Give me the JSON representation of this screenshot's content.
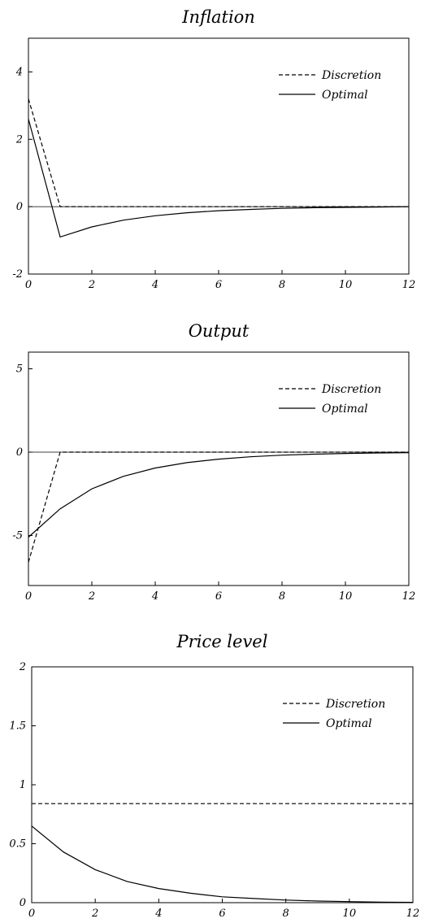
{
  "chart_data": [
    {
      "type": "line",
      "title": "Inflation",
      "xlabel": "",
      "ylabel": "",
      "xlim": [
        0,
        12
      ],
      "ylim": [
        -2,
        5
      ],
      "xticks": [
        0,
        2,
        4,
        6,
        8,
        10,
        12
      ],
      "yticks": [
        -2,
        0,
        2,
        4
      ],
      "zero_line": true,
      "grid": false,
      "legend_position": "top-right",
      "series": [
        {
          "name": "Discretion",
          "style": "dashed",
          "x": [
            0,
            1,
            2,
            3,
            4,
            5,
            6,
            7,
            8,
            9,
            10,
            11,
            12
          ],
          "y": [
            3.2,
            0,
            0,
            0,
            0,
            0,
            0,
            0,
            0,
            0,
            0,
            0,
            0
          ]
        },
        {
          "name": "Optimal",
          "style": "solid",
          "x": [
            0,
            1,
            2,
            3,
            4,
            5,
            6,
            7,
            8,
            9,
            10,
            11,
            12
          ],
          "y": [
            2.6,
            -0.9,
            -0.6,
            -0.4,
            -0.27,
            -0.18,
            -0.12,
            -0.08,
            -0.05,
            -0.03,
            -0.02,
            -0.01,
            0
          ]
        }
      ]
    },
    {
      "type": "line",
      "title": "Output",
      "xlabel": "",
      "ylabel": "",
      "xlim": [
        0,
        12
      ],
      "ylim": [
        -8,
        6
      ],
      "xticks": [
        0,
        2,
        4,
        6,
        8,
        10,
        12
      ],
      "yticks": [
        -5,
        0,
        5
      ],
      "zero_line": true,
      "grid": false,
      "legend_position": "top-right",
      "series": [
        {
          "name": "Discretion",
          "style": "dashed",
          "x": [
            0,
            1,
            2,
            3,
            4,
            5,
            6,
            7,
            8,
            9,
            10,
            11,
            12
          ],
          "y": [
            -6.6,
            0,
            0,
            0,
            0,
            0,
            0,
            0,
            0,
            0,
            0,
            0,
            0
          ]
        },
        {
          "name": "Optimal",
          "style": "solid",
          "x": [
            0,
            1,
            2,
            3,
            4,
            5,
            6,
            7,
            8,
            9,
            10,
            11,
            12
          ],
          "y": [
            -5.1,
            -3.4,
            -2.2,
            -1.45,
            -0.95,
            -0.63,
            -0.42,
            -0.28,
            -0.18,
            -0.12,
            -0.08,
            -0.05,
            -0.03
          ]
        }
      ]
    },
    {
      "type": "line",
      "title": "Price level",
      "xlabel": "",
      "ylabel": "",
      "xlim": [
        0,
        12
      ],
      "ylim": [
        0,
        2
      ],
      "xticks": [
        0,
        2,
        4,
        6,
        8,
        10,
        12
      ],
      "yticks": [
        0,
        0.5,
        1,
        1.5,
        2
      ],
      "zero_line": false,
      "grid": false,
      "legend_position": "top-right",
      "series": [
        {
          "name": "Discretion",
          "style": "dashed",
          "x": [
            0,
            1,
            2,
            3,
            4,
            5,
            6,
            7,
            8,
            9,
            10,
            11,
            12
          ],
          "y": [
            0.84,
            0.84,
            0.84,
            0.84,
            0.84,
            0.84,
            0.84,
            0.84,
            0.84,
            0.84,
            0.84,
            0.84,
            0.84
          ]
        },
        {
          "name": "Optimal",
          "style": "solid",
          "x": [
            0,
            1,
            2,
            3,
            4,
            5,
            6,
            7,
            8,
            9,
            10,
            11,
            12
          ],
          "y": [
            0.65,
            0.43,
            0.28,
            0.18,
            0.12,
            0.08,
            0.05,
            0.035,
            0.022,
            0.014,
            0.009,
            0.005,
            0.003
          ]
        }
      ]
    }
  ]
}
